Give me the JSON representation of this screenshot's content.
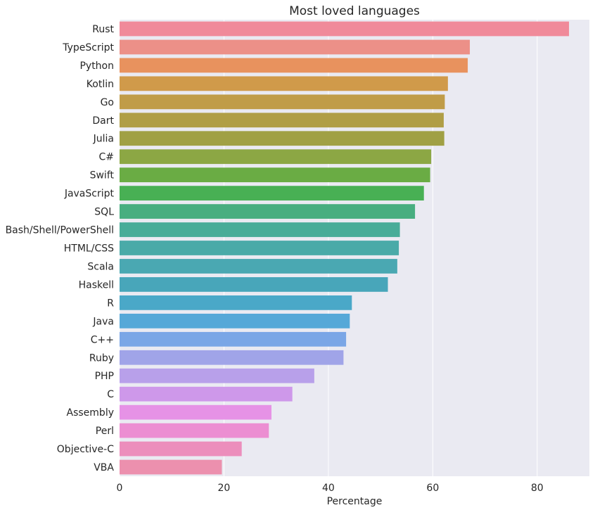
{
  "chart_data": {
    "type": "bar",
    "orientation": "horizontal",
    "title": "Most loved languages",
    "xlabel": "Percentage",
    "ylabel": "",
    "xlim": [
      0,
      90
    ],
    "xticks": [
      0,
      20,
      40,
      60,
      80
    ],
    "grid": true,
    "categories": [
      "Rust",
      "TypeScript",
      "Python",
      "Kotlin",
      "Go",
      "Dart",
      "Julia",
      "C#",
      "Swift",
      "JavaScript",
      "SQL",
      "Bash/Shell/PowerShell",
      "HTML/CSS",
      "Scala",
      "Haskell",
      "R",
      "Java",
      "C++",
      "Ruby",
      "PHP",
      "C",
      "Assembly",
      "Perl",
      "Objective-C",
      "VBA"
    ],
    "values": [
      86.1,
      67.1,
      66.7,
      62.9,
      62.3,
      62.1,
      62.2,
      59.7,
      59.5,
      58.3,
      56.6,
      53.7,
      53.5,
      53.2,
      51.4,
      44.5,
      44.1,
      43.4,
      42.9,
      37.3,
      33.1,
      29.1,
      28.6,
      23.4,
      19.6
    ],
    "colors": [
      "#f08a9a",
      "#ec9088",
      "#e8925e",
      "#d09a4a",
      "#c09c48",
      "#b09e46",
      "#a0a044",
      "#8ca744",
      "#6aac44",
      "#48b054",
      "#48ae80",
      "#48ac98",
      "#4aaaa8",
      "#4aa8b2",
      "#48a6ba",
      "#4aa8c8",
      "#56a8d8",
      "#7aa6e6",
      "#a0a4e8",
      "#b8a0ea",
      "#ce98ea",
      "#e692e6",
      "#ec8ed2",
      "#ec8ebc",
      "#ec90ae"
    ]
  }
}
